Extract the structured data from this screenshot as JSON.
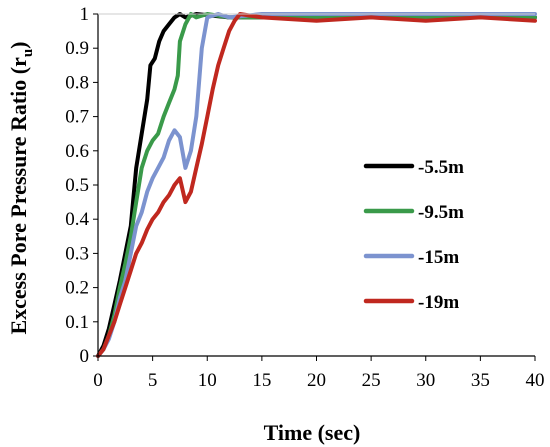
{
  "chart_data": {
    "type": "line",
    "xlabel": "Time (sec)",
    "ylabel_main": "Excess Pore Pressure Ratio (r",
    "ylabel_sub": "u",
    "ylabel_close": ")",
    "xlim": [
      0,
      40
    ],
    "ylim": [
      0,
      1
    ],
    "xticks": [
      "0",
      "5",
      "10",
      "15",
      "20",
      "25",
      "30",
      "35",
      "40"
    ],
    "yticks": [
      "0",
      "0.1",
      "0.2",
      "0.3",
      "0.4",
      "0.5",
      "0.6",
      "0.7",
      "0.8",
      "0.9",
      "1"
    ],
    "grid": false,
    "legend_position": "right",
    "series": [
      {
        "name": "-5.5m",
        "color": "#000000",
        "points": [
          [
            0,
            0
          ],
          [
            0.5,
            0.03
          ],
          [
            1,
            0.08
          ],
          [
            1.5,
            0.15
          ],
          [
            2,
            0.22
          ],
          [
            2.5,
            0.3
          ],
          [
            3,
            0.38
          ],
          [
            3.2,
            0.45
          ],
          [
            3.5,
            0.55
          ],
          [
            4,
            0.65
          ],
          [
            4.5,
            0.75
          ],
          [
            4.8,
            0.85
          ],
          [
            5.2,
            0.87
          ],
          [
            5.6,
            0.92
          ],
          [
            6,
            0.95
          ],
          [
            6.5,
            0.97
          ],
          [
            7,
            0.99
          ],
          [
            7.5,
            1.0
          ],
          [
            8,
            0.99
          ],
          [
            9,
            1.0
          ],
          [
            12,
            0.99
          ],
          [
            15,
            0.99
          ],
          [
            20,
            0.99
          ],
          [
            25,
            0.99
          ],
          [
            30,
            0.99
          ],
          [
            35,
            0.99
          ],
          [
            40,
            0.99
          ]
        ]
      },
      {
        "name": "-9.5m",
        "color": "#3a9a4a",
        "points": [
          [
            0,
            0
          ],
          [
            0.5,
            0.02
          ],
          [
            1,
            0.06
          ],
          [
            1.5,
            0.12
          ],
          [
            2,
            0.2
          ],
          [
            2.5,
            0.27
          ],
          [
            3,
            0.35
          ],
          [
            3.5,
            0.45
          ],
          [
            4,
            0.55
          ],
          [
            4.5,
            0.6
          ],
          [
            5,
            0.63
          ],
          [
            5.5,
            0.65
          ],
          [
            6,
            0.7
          ],
          [
            6.5,
            0.74
          ],
          [
            7,
            0.78
          ],
          [
            7.3,
            0.82
          ],
          [
            7.5,
            0.92
          ],
          [
            8,
            0.97
          ],
          [
            8.5,
            1.0
          ],
          [
            9,
            0.99
          ],
          [
            10,
            1.0
          ],
          [
            12,
            0.99
          ],
          [
            15,
            0.99
          ],
          [
            20,
            0.99
          ],
          [
            25,
            0.99
          ],
          [
            30,
            0.99
          ],
          [
            35,
            0.99
          ],
          [
            40,
            0.99
          ]
        ]
      },
      {
        "name": "-15m",
        "color": "#7c93cf",
        "points": [
          [
            0,
            0
          ],
          [
            0.5,
            0.02
          ],
          [
            1,
            0.05
          ],
          [
            1.5,
            0.1
          ],
          [
            2,
            0.17
          ],
          [
            2.5,
            0.22
          ],
          [
            3,
            0.3
          ],
          [
            3.5,
            0.38
          ],
          [
            4,
            0.42
          ],
          [
            4.5,
            0.48
          ],
          [
            5,
            0.52
          ],
          [
            5.5,
            0.55
          ],
          [
            6,
            0.58
          ],
          [
            6.5,
            0.63
          ],
          [
            7,
            0.66
          ],
          [
            7.5,
            0.64
          ],
          [
            8,
            0.55
          ],
          [
            8.5,
            0.6
          ],
          [
            9,
            0.7
          ],
          [
            9.5,
            0.9
          ],
          [
            10,
            0.99
          ],
          [
            11,
            1.0
          ],
          [
            12,
            0.99
          ],
          [
            15,
            1.0
          ],
          [
            20,
            1.0
          ],
          [
            25,
            1.0
          ],
          [
            30,
            1.0
          ],
          [
            35,
            1.0
          ],
          [
            40,
            1.0
          ]
        ]
      },
      {
        "name": "-19m",
        "color": "#c0281f",
        "points": [
          [
            0,
            0
          ],
          [
            0.5,
            0.02
          ],
          [
            1,
            0.06
          ],
          [
            1.5,
            0.1
          ],
          [
            2,
            0.15
          ],
          [
            2.5,
            0.2
          ],
          [
            3,
            0.25
          ],
          [
            3.5,
            0.3
          ],
          [
            4,
            0.33
          ],
          [
            4.5,
            0.37
          ],
          [
            5,
            0.4
          ],
          [
            5.5,
            0.42
          ],
          [
            6,
            0.45
          ],
          [
            6.5,
            0.47
          ],
          [
            7,
            0.5
          ],
          [
            7.5,
            0.52
          ],
          [
            8,
            0.45
          ],
          [
            8.5,
            0.48
          ],
          [
            9,
            0.55
          ],
          [
            9.5,
            0.62
          ],
          [
            10,
            0.7
          ],
          [
            10.5,
            0.78
          ],
          [
            11,
            0.85
          ],
          [
            11.5,
            0.9
          ],
          [
            12,
            0.95
          ],
          [
            12.5,
            0.98
          ],
          [
            13,
            1.0
          ],
          [
            15,
            0.99
          ],
          [
            20,
            0.98
          ],
          [
            25,
            0.99
          ],
          [
            30,
            0.98
          ],
          [
            35,
            0.99
          ],
          [
            40,
            0.98
          ]
        ]
      }
    ]
  }
}
